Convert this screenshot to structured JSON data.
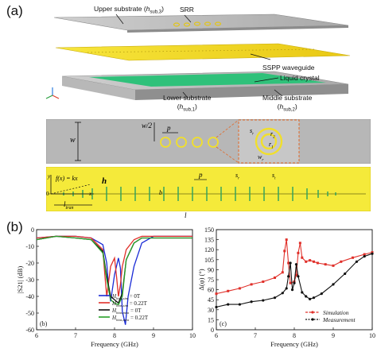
{
  "panel_a": {
    "tag": "(a)",
    "exploded": {
      "upper_substrate": "Upper substrate (",
      "upper_sym": "h",
      "upper_sub": "sub,3",
      "srr": "SRR",
      "sspp_waveguide": "SSPP waveguide",
      "liquid_crystal": "Liquid crystal",
      "lower_substrate": "Lower substrate",
      "lower_sym": "h",
      "lower_sub": "sub,1",
      "middle_substrate": "Middle substrate",
      "middle_sym": "h",
      "middle_sub": "sub,2"
    },
    "top_view": {
      "w": "w",
      "w_half": "w/2",
      "p": "p",
      "s_r": "s",
      "s_r_sub": "r",
      "r_2": "r",
      "r_2_sub": "2",
      "r_1": "r",
      "r_1_sub": "1",
      "w_r": "w",
      "w_r_sub": "r"
    },
    "waveguide": {
      "fx": "f(x) = kx",
      "h": "h",
      "p": "p",
      "b": "b",
      "l_tran": "l",
      "l_tran_sub": "tran",
      "l": "l",
      "s_r": "s",
      "s_r_sub": "r",
      "s_t": "s",
      "s_t_sub": "t",
      "origin": "0",
      "x": "x",
      "y": "y"
    }
  },
  "panel_b": {
    "tag": "(b)",
    "left_plot": {
      "sub_tag": "(b)",
      "xlabel": "Frequency (GHz)",
      "ylabel": "|S21| (dB)",
      "xticks": [
        "6",
        "7",
        "8",
        "9",
        "10"
      ],
      "yticks": [
        "0",
        "-10",
        "-20",
        "-30",
        "-40",
        "-50",
        "-60"
      ],
      "legend": [
        {
          "name": "H_bias = 0T",
          "sym": "H",
          "sub": "bias,sim",
          "val": " = 0T",
          "color": "#1a2bd6"
        },
        {
          "name": "H_bias = 0.22T",
          "sym": "H",
          "sub": "bias,sim",
          "val": " = 0.22T",
          "color": "#e0302a"
        },
        {
          "name": "H_bias = 0T (meas)",
          "sym": "H",
          "sub": "bias,mea",
          "val": " = 0T",
          "color": "#111111"
        },
        {
          "name": "H_bias = 0.22T (meas)",
          "sym": "H",
          "sub": "bias,mea",
          "val": " = 0.22T",
          "color": "#2aa02a"
        }
      ]
    },
    "right_plot": {
      "sub_tag": "(c)",
      "xlabel": "Frequency (GHz)",
      "ylabel": "Δ(φ) (°)",
      "xticks": [
        "6",
        "7",
        "8",
        "9",
        "10"
      ],
      "yticks": [
        "0",
        "15",
        "30",
        "45",
        "60",
        "75",
        "90",
        "105",
        "120",
        "135",
        "150"
      ],
      "legend": [
        {
          "name": "Simulation",
          "color": "#e0302a"
        },
        {
          "name": "Measurement",
          "color": "#111111"
        }
      ]
    }
  },
  "chart_data": [
    {
      "type": "line",
      "title": "",
      "xlabel": "Frequency (GHz)",
      "ylabel": "|S21| (dB)",
      "xlim": [
        6,
        10
      ],
      "ylim": [
        -60,
        0
      ],
      "series": [
        {
          "name": "H_bias,sim = 0T",
          "color": "#1a2bd6",
          "x": [
            6.0,
            6.5,
            7.0,
            7.4,
            7.7,
            7.8,
            7.85,
            7.9,
            8.0,
            8.1,
            8.15,
            8.2,
            8.28,
            8.35,
            8.5,
            8.7,
            9.0,
            9.5,
            10.0
          ],
          "y": [
            -5,
            -4,
            -4,
            -5,
            -9,
            -20,
            -35,
            -43,
            -27,
            -17,
            -23,
            -49,
            -57,
            -40,
            -22,
            -8,
            -4,
            -4,
            -4
          ]
        },
        {
          "name": "H_bias,sim = 0.22T",
          "color": "#e0302a",
          "x": [
            6.0,
            6.5,
            7.0,
            7.4,
            7.7,
            7.75,
            7.8,
            7.9,
            8.0,
            8.05,
            8.1,
            8.15,
            8.2,
            8.3,
            8.5,
            8.7,
            9.0,
            9.5,
            10.0
          ],
          "y": [
            -5,
            -4,
            -4,
            -5,
            -12,
            -27,
            -40,
            -22,
            -17,
            -28,
            -40,
            -33,
            -22,
            -12,
            -6,
            -4,
            -4,
            -4,
            -4
          ]
        },
        {
          "name": "H_bias,mea = 0T",
          "color": "#111111",
          "x": [
            6.0,
            6.5,
            7.0,
            7.4,
            7.7,
            7.8,
            7.9,
            8.0,
            8.1,
            8.2,
            8.3,
            8.5,
            8.7,
            9.0,
            9.5,
            10.0
          ],
          "y": [
            -6,
            -4,
            -5,
            -6,
            -13,
            -28,
            -40,
            -42,
            -44,
            -38,
            -18,
            -8,
            -5,
            -5,
            -5,
            -5
          ]
        },
        {
          "name": "H_bias,mea = 0.22T",
          "color": "#2aa02a",
          "x": [
            6.0,
            6.5,
            7.0,
            7.4,
            7.7,
            7.8,
            7.9,
            8.0,
            8.1,
            8.2,
            8.3,
            8.5,
            8.7,
            9.0,
            9.5,
            10.0
          ],
          "y": [
            -6,
            -4,
            -5,
            -6,
            -14,
            -30,
            -42,
            -44,
            -45,
            -40,
            -18,
            -8,
            -5,
            -5,
            -5,
            -5
          ]
        }
      ]
    },
    {
      "type": "line",
      "title": "",
      "xlabel": "Frequency (GHz)",
      "ylabel": "Δ(φ) (°)",
      "xlim": [
        6,
        10
      ],
      "ylim": [
        0,
        150
      ],
      "series": [
        {
          "name": "Simulation",
          "color": "#e0302a",
          "marker": "square",
          "x": [
            6.0,
            6.3,
            6.6,
            6.9,
            7.2,
            7.5,
            7.7,
            7.75,
            7.8,
            7.85,
            7.9,
            8.0,
            8.05,
            8.1,
            8.15,
            8.2,
            8.3,
            8.4,
            8.5,
            8.6,
            8.8,
            9.0,
            9.2,
            9.5,
            9.8,
            10.0
          ],
          "y": [
            54,
            58,
            62,
            68,
            72,
            78,
            86,
            118,
            135,
            100,
            70,
            72,
            82,
            115,
            130,
            108,
            102,
            104,
            102,
            100,
            98,
            96,
            102,
            108,
            113,
            116
          ]
        },
        {
          "name": "Measurement",
          "color": "#111111",
          "marker": "circle",
          "x": [
            6.0,
            6.3,
            6.6,
            6.9,
            7.2,
            7.5,
            7.7,
            7.8,
            7.85,
            7.9,
            7.95,
            8.0,
            8.05,
            8.1,
            8.2,
            8.3,
            8.4,
            8.5,
            8.7,
            9.0,
            9.3,
            9.6,
            9.8,
            10.0
          ],
          "y": [
            34,
            38,
            38,
            42,
            44,
            48,
            55,
            62,
            80,
            100,
            60,
            70,
            98,
            80,
            56,
            50,
            46,
            48,
            54,
            68,
            84,
            102,
            110,
            114
          ]
        }
      ]
    }
  ]
}
